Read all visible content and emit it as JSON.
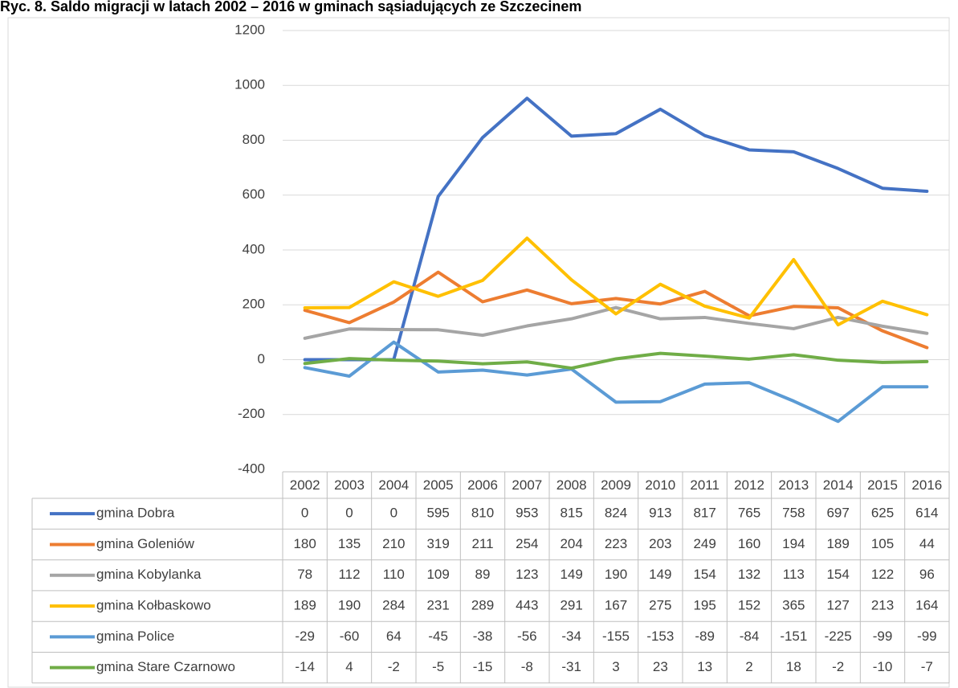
{
  "chart_data": {
    "type": "line",
    "title": "Ryc. 8. Saldo migracji w latach 2002 – 2016 w gminach sąsiadujących ze Szczecinem",
    "categories": [
      "2002",
      "2003",
      "2004",
      "2005",
      "2006",
      "2007",
      "2008",
      "2009",
      "2010",
      "2011",
      "2012",
      "2013",
      "2014",
      "2015",
      "2016"
    ],
    "ylim": [
      -400,
      1200
    ],
    "yticks": [
      -400,
      -200,
      0,
      200,
      400,
      600,
      800,
      1000,
      1200
    ],
    "grid": true,
    "series": [
      {
        "name": "gmina Dobra",
        "color": "#4472c4",
        "values": [
          0,
          0,
          0,
          595,
          810,
          953,
          815,
          824,
          913,
          817,
          765,
          758,
          697,
          625,
          614
        ]
      },
      {
        "name": "gmina Goleniów",
        "color": "#ed7d31",
        "values": [
          180,
          135,
          210,
          319,
          211,
          254,
          204,
          223,
          203,
          249,
          160,
          194,
          189,
          105,
          44
        ]
      },
      {
        "name": "gmina Kobylanka",
        "color": "#a5a5a5",
        "values": [
          78,
          112,
          110,
          109,
          89,
          123,
          149,
          190,
          149,
          154,
          132,
          113,
          154,
          122,
          96
        ]
      },
      {
        "name": "gmina Kołbaskowo",
        "color": "#ffc000",
        "values": [
          189,
          190,
          284,
          231,
          289,
          443,
          291,
          167,
          275,
          195,
          152,
          365,
          127,
          213,
          164
        ]
      },
      {
        "name": "gmina Police",
        "color": "#5b9bd5",
        "values": [
          -29,
          -60,
          64,
          -45,
          -38,
          -56,
          -34,
          -155,
          -153,
          -89,
          -84,
          -151,
          -225,
          -99,
          -99
        ]
      },
      {
        "name": "gmina Stare Czarnowo",
        "color": "#70ad47",
        "values": [
          -14,
          4,
          -2,
          -5,
          -15,
          -8,
          -31,
          3,
          23,
          13,
          2,
          18,
          -2,
          -10,
          -7
        ]
      }
    ]
  }
}
